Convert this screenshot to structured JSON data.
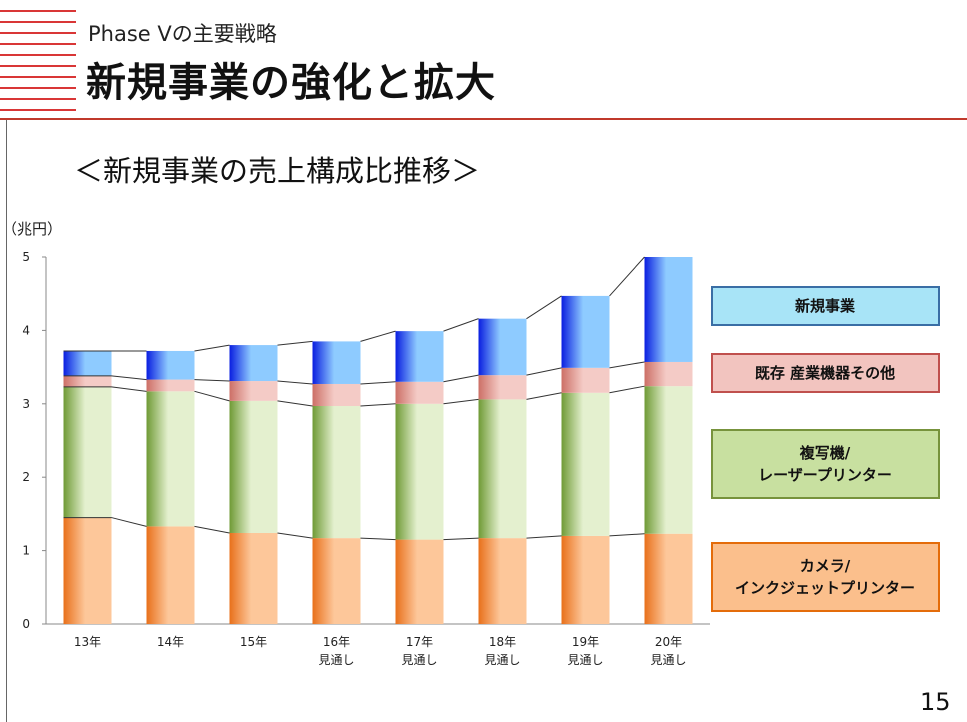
{
  "header": {
    "subtitle": "Phase Ⅴの主要戦略",
    "title": "新規事業の強化と拡大"
  },
  "page_number": "15",
  "colors": {
    "accent": "#d93636",
    "new_business": "#2a5cf0",
    "existing_industrial": "#e3a09a",
    "copier": "#9fc66a",
    "camera": "#f29a4f"
  },
  "chart_data": {
    "type": "bar",
    "stacked": true,
    "title": "＜新規事業の売上構成比推移＞",
    "ylabel": "（兆円）",
    "ylim": [
      0,
      5
    ],
    "yticks": [
      "0",
      "1",
      "2",
      "3",
      "4",
      "5"
    ],
    "categories": [
      [
        "13年"
      ],
      [
        "14年"
      ],
      [
        "15年"
      ],
      [
        "16年",
        "見通し"
      ],
      [
        "17年",
        "見通し"
      ],
      [
        "18年",
        "見通し"
      ],
      [
        "19年",
        "見通し"
      ],
      [
        "20年",
        "見通し"
      ]
    ],
    "series": [
      {
        "name": "カメラ/インクジェットプリンター",
        "legend_lines": [
          "カメラ/",
          "インクジェットプリンター"
        ],
        "values": [
          1.45,
          1.33,
          1.24,
          1.17,
          1.15,
          1.17,
          1.2,
          1.23
        ]
      },
      {
        "name": "複写機/レーザープリンター",
        "legend_lines": [
          "複写機/",
          "レーザープリンター"
        ],
        "values": [
          1.78,
          1.84,
          1.8,
          1.8,
          1.85,
          1.89,
          1.95,
          2.01
        ]
      },
      {
        "name": "既存 産業機器その他",
        "legend_lines": [
          "既存 産業機器その他"
        ],
        "values": [
          0.15,
          0.16,
          0.27,
          0.3,
          0.3,
          0.33,
          0.34,
          0.33
        ]
      },
      {
        "name": "新規事業",
        "legend_lines": [
          "新規事業"
        ],
        "values": [
          0.34,
          0.39,
          0.49,
          0.58,
          0.69,
          0.77,
          0.98,
          1.43
        ]
      }
    ]
  }
}
